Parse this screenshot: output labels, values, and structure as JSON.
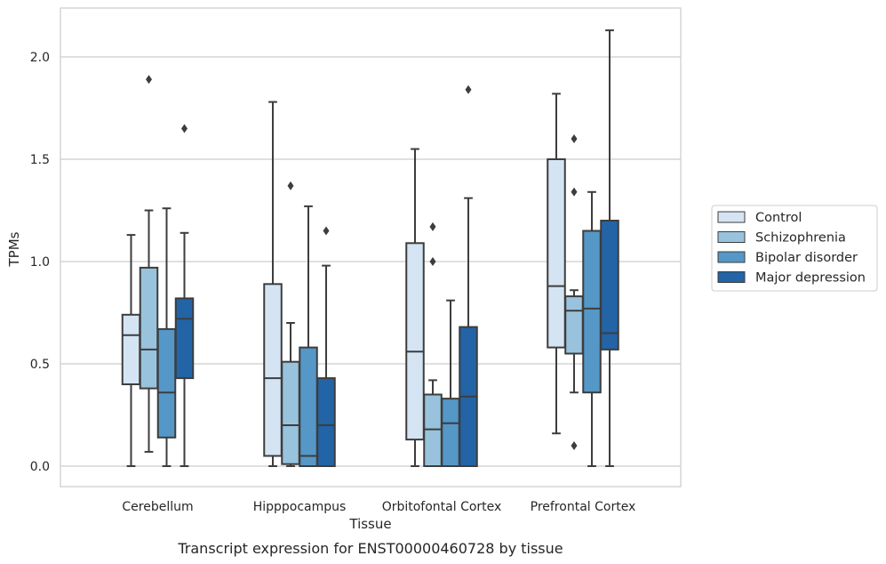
{
  "caption": "Transcript expression for ENST00000460728 by tissue",
  "chart_data": {
    "type": "box",
    "title": "",
    "xlabel": "Tissue",
    "ylabel": "TPMs",
    "ylim": [
      -0.1,
      2.25
    ],
    "yticks": [
      "0.0",
      "0.5",
      "1.0",
      "1.5",
      "2.0"
    ],
    "ytick_values": [
      0,
      0.5,
      1.0,
      1.5,
      2.0
    ],
    "grid": "horizontal",
    "legend_position": "right",
    "categories": [
      "Cerebellum",
      "Hipppocampus",
      "Orbitofontal Cortex",
      "Prefrontal Cortex"
    ],
    "series": [
      {
        "name": "Control",
        "color": "#d5e4f3",
        "boxes": [
          {
            "whislo": 0.0,
            "q1": 0.4,
            "med": 0.64,
            "q3": 0.74,
            "whishi": 1.13,
            "fliers": []
          },
          {
            "whislo": 0.0,
            "q1": 0.05,
            "med": 0.43,
            "q3": 0.89,
            "whishi": 1.78,
            "fliers": []
          },
          {
            "whislo": 0.0,
            "q1": 0.13,
            "med": 0.56,
            "q3": 1.09,
            "whishi": 1.55,
            "fliers": []
          },
          {
            "whislo": 0.16,
            "q1": 0.58,
            "med": 0.88,
            "q3": 1.5,
            "whishi": 1.82,
            "fliers": []
          }
        ]
      },
      {
        "name": "Schizophrenia",
        "color": "#99c3dc",
        "boxes": [
          {
            "whislo": 0.07,
            "q1": 0.38,
            "med": 0.57,
            "q3": 0.97,
            "whishi": 1.25,
            "fliers": [
              1.89
            ]
          },
          {
            "whislo": 0.0,
            "q1": 0.01,
            "med": 0.2,
            "q3": 0.51,
            "whishi": 0.7,
            "fliers": [
              1.37
            ]
          },
          {
            "whislo": 0.0,
            "q1": 0.0,
            "med": 0.18,
            "q3": 0.35,
            "whishi": 0.42,
            "fliers": [
              1.17,
              1.0
            ]
          },
          {
            "whislo": 0.36,
            "q1": 0.55,
            "med": 0.76,
            "q3": 0.83,
            "whishi": 0.86,
            "fliers": [
              1.6,
              1.34,
              0.1
            ]
          }
        ]
      },
      {
        "name": "Bipolar disorder",
        "color": "#5597c7",
        "boxes": [
          {
            "whislo": 0.0,
            "q1": 0.14,
            "med": 0.36,
            "q3": 0.67,
            "whishi": 1.26,
            "fliers": []
          },
          {
            "whislo": 0.0,
            "q1": 0.0,
            "med": 0.05,
            "q3": 0.58,
            "whishi": 1.27,
            "fliers": []
          },
          {
            "whislo": 0.0,
            "q1": 0.0,
            "med": 0.21,
            "q3": 0.33,
            "whishi": 0.81,
            "fliers": []
          },
          {
            "whislo": 0.0,
            "q1": 0.36,
            "med": 0.77,
            "q3": 1.15,
            "whishi": 1.34,
            "fliers": []
          }
        ]
      },
      {
        "name": "Major depression",
        "color": "#2264a6",
        "boxes": [
          {
            "whislo": 0.0,
            "q1": 0.43,
            "med": 0.72,
            "q3": 0.82,
            "whishi": 1.14,
            "fliers": [
              1.65
            ]
          },
          {
            "whislo": 0.0,
            "q1": 0.0,
            "med": 0.2,
            "q3": 0.43,
            "whishi": 0.98,
            "fliers": [
              1.15
            ]
          },
          {
            "whislo": 0.0,
            "q1": 0.0,
            "med": 0.34,
            "q3": 0.68,
            "whishi": 1.31,
            "fliers": [
              1.84
            ]
          },
          {
            "whislo": 0.0,
            "q1": 0.57,
            "med": 0.65,
            "q3": 1.2,
            "whishi": 2.13,
            "fliers": []
          }
        ]
      }
    ]
  }
}
